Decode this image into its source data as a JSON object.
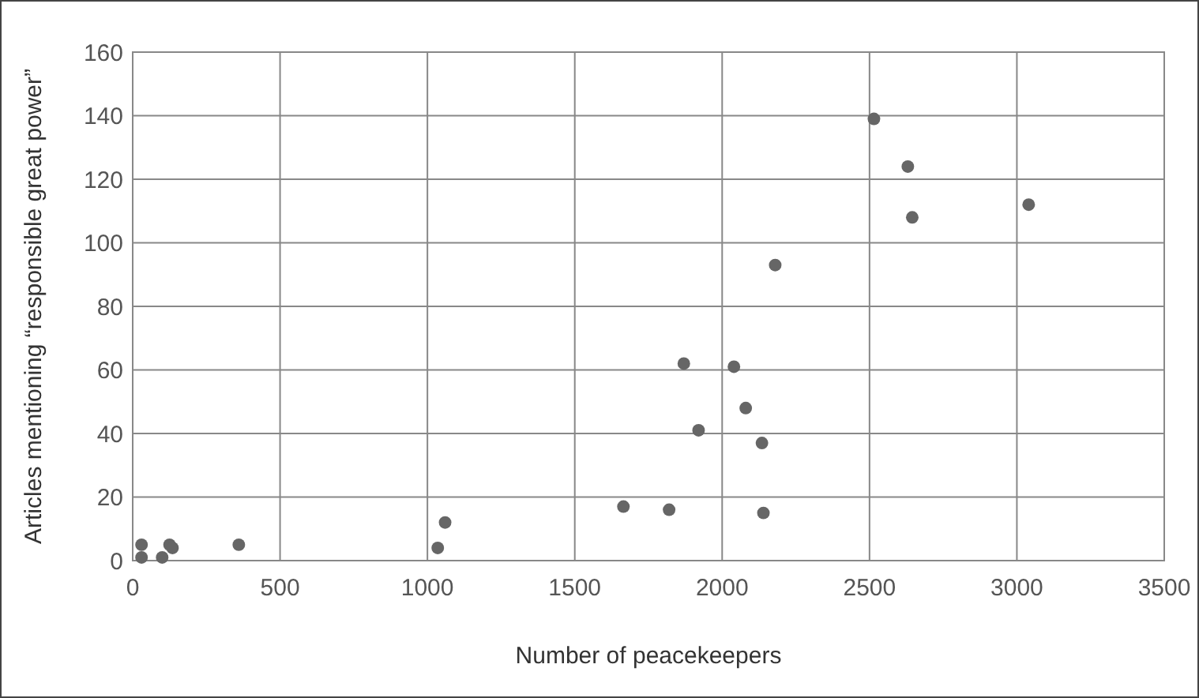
{
  "chart_data": {
    "type": "scatter",
    "xlabel": "Number of peacekeepers",
    "ylabel": "Articles mentioning “responsible great power”",
    "x": [
      30,
      30,
      100,
      125,
      135,
      360,
      1035,
      1060,
      1665,
      1820,
      1870,
      1920,
      2040,
      2080,
      2135,
      2140,
      2180,
      2515,
      2630,
      2645,
      3040
    ],
    "values": [
      5,
      1,
      1,
      5,
      4,
      5,
      4,
      12,
      17,
      16,
      62,
      41,
      61,
      48,
      37,
      15,
      93,
      139,
      124,
      108,
      112
    ],
    "color": "#666666",
    "marker": "circle",
    "xlim": [
      0,
      3500
    ],
    "xticks": [
      0,
      500,
      1000,
      1500,
      2000,
      2500,
      3000,
      3500
    ],
    "ylim": [
      0,
      160
    ],
    "yticks": [
      0,
      20,
      40,
      60,
      80,
      100,
      120,
      140,
      160
    ],
    "grid": true
  }
}
